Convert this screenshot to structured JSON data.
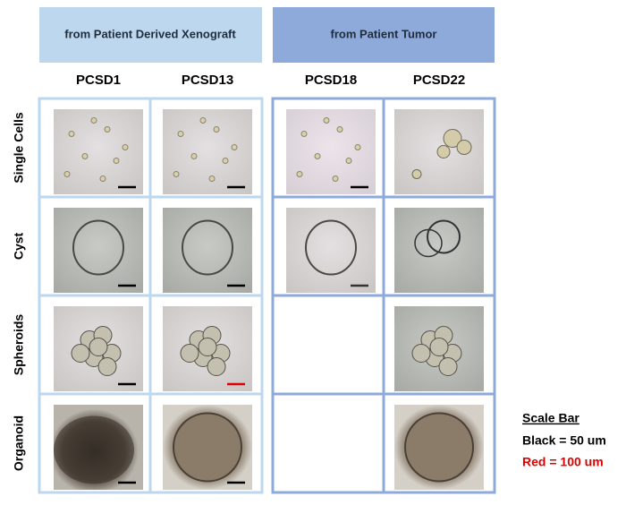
{
  "header": {
    "groups": [
      {
        "label": "from Patient Derived Xenograft"
      },
      {
        "label": "from Patient Tumor"
      }
    ]
  },
  "columns": [
    "PCSD1",
    "PCSD13",
    "PCSD18",
    "PCSD22"
  ],
  "rows": [
    "Single Cells",
    "Cyst",
    "Spheroids",
    "Organoid"
  ],
  "legend": {
    "title": "Scale Bar",
    "items": [
      {
        "label": "Black = 50 um",
        "color": "#000000"
      },
      {
        "label": "Red = 100 um",
        "color": "#e00000"
      }
    ]
  }
}
